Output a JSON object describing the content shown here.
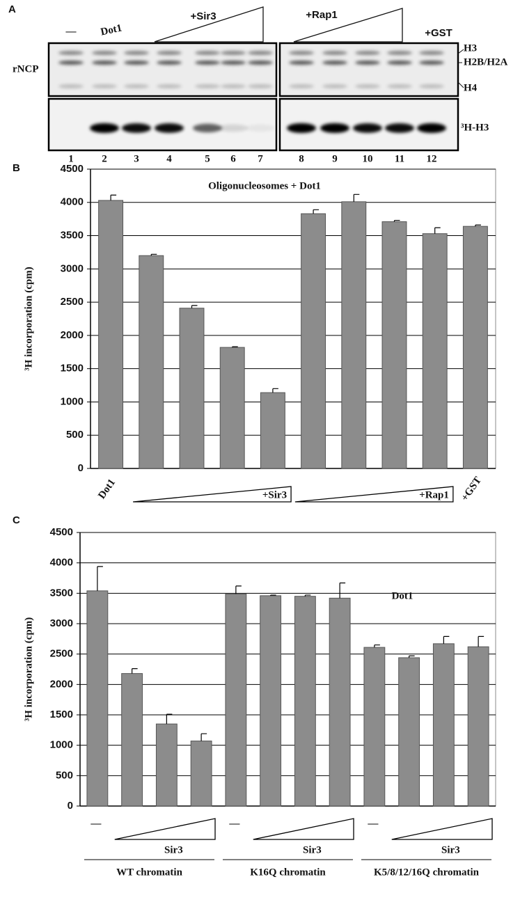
{
  "panel_a": {
    "label": "A",
    "lane_headers": [
      "—",
      "Dot1",
      "+Sir3",
      "+Rap1",
      "+GST"
    ],
    "row_label": "rNCP",
    "band_labels": [
      "H3",
      "H2B/H2A",
      "H4",
      "³H-H3"
    ],
    "lanes": [
      1,
      2,
      3,
      4,
      5,
      6,
      7,
      8,
      9,
      10,
      11,
      12
    ]
  },
  "chart_data": [
    {
      "type": "bar",
      "panel_label": "B",
      "title": "Oligonucleosomes + Dot1",
      "y_label": "³H incorporation (cpm)",
      "categories": [
        "Dot1",
        null,
        null,
        null,
        null,
        null,
        null,
        null,
        null,
        "+GST"
      ],
      "group_labels": [
        "+Sir3",
        "+Rap1"
      ],
      "values": [
        4030,
        3200,
        2410,
        1820,
        1140,
        3830,
        4010,
        3710,
        3530,
        3640
      ],
      "errors": [
        80,
        20,
        40,
        10,
        60,
        60,
        110,
        20,
        90,
        20
      ],
      "color": "#8c8c8c",
      "ylim": [
        0,
        4500
      ],
      "yticks": [
        0,
        500,
        1000,
        1500,
        2000,
        2500,
        3000,
        3500,
        4000,
        4500
      ],
      "grid": true
    },
    {
      "type": "bar",
      "panel_label": "C",
      "title": "Dot1",
      "y_label": "³H incorporation (cpm)",
      "categories": [
        "—",
        null,
        null,
        null,
        "—",
        null,
        null,
        null,
        "—",
        null,
        null,
        null
      ],
      "treatment_labels": [
        "Sir3",
        "Sir3",
        "Sir3"
      ],
      "group_labels": [
        "WT chromatin",
        "K16Q chromatin",
        "K5/8/12/16Q chromatin"
      ],
      "values": [
        3540,
        2180,
        1350,
        1070,
        3490,
        3460,
        3450,
        3420,
        2610,
        2440,
        2670,
        2620
      ],
      "errors": [
        400,
        80,
        160,
        120,
        130,
        10,
        20,
        250,
        40,
        30,
        120,
        170
      ],
      "color": "#8c8c8c",
      "ylim": [
        0,
        4500
      ],
      "yticks": [
        0,
        500,
        1000,
        1500,
        2000,
        2500,
        3000,
        3500,
        4000,
        4500
      ],
      "grid": true
    }
  ]
}
